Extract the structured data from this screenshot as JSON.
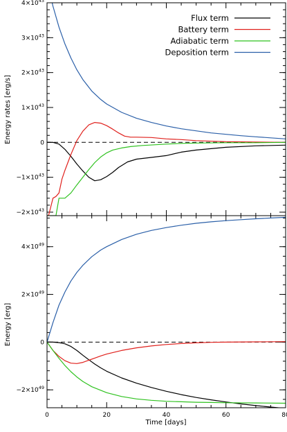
{
  "chart_data": [
    {
      "type": "line",
      "ylabel": "Energy rates [erg/s]",
      "xlabel": "",
      "xlim": [
        0,
        80
      ],
      "ylim": [
        -2.1,
        4.0
      ],
      "y_exponent": "43",
      "yticks": [
        {
          "value": -2,
          "mantissa": "−2×10",
          "exp": "43"
        },
        {
          "value": -1,
          "mantissa": "−1×10",
          "exp": "43"
        },
        {
          "value": 0,
          "mantissa": "0",
          "exp": ""
        },
        {
          "value": 1,
          "mantissa": "1×10",
          "exp": "43"
        },
        {
          "value": 2,
          "mantissa": "2×10",
          "exp": "43"
        },
        {
          "value": 3,
          "mantissa": "3×10",
          "exp": "43"
        },
        {
          "value": 4,
          "mantissa": "4×10",
          "exp": "43"
        }
      ],
      "zero_line": "dashed",
      "legend": "top-right",
      "series": [
        {
          "name": "Flux term",
          "color": "#000000",
          "x": [
            0,
            2,
            4,
            6,
            8,
            10,
            12,
            14,
            16,
            18,
            20,
            22,
            24,
            27,
            30,
            35,
            40,
            45,
            50,
            60,
            70,
            80
          ],
          "y": [
            0,
            0,
            -0.05,
            -0.2,
            -0.4,
            -0.62,
            -0.82,
            -1.0,
            -1.1,
            -1.07,
            -0.98,
            -0.86,
            -0.72,
            -0.56,
            -0.48,
            -0.43,
            -0.38,
            -0.28,
            -0.22,
            -0.14,
            -0.1,
            -0.08
          ]
        },
        {
          "name": "Battery term",
          "color": "#e0201c",
          "x": [
            0,
            0.5,
            2,
            3,
            4,
            5,
            6,
            8,
            10,
            12,
            14,
            16,
            18,
            20,
            22,
            24,
            26,
            28,
            30,
            35,
            40,
            45,
            50,
            60,
            70,
            80
          ],
          "y": [
            -2.1,
            -2.1,
            -1.6,
            -1.55,
            -1.45,
            -1.05,
            -0.8,
            -0.35,
            0.05,
            0.32,
            0.5,
            0.57,
            0.55,
            0.48,
            0.38,
            0.27,
            0.18,
            0.15,
            0.15,
            0.14,
            0.1,
            0.08,
            0.05,
            0.02,
            0.01,
            0.0
          ]
        },
        {
          "name": "Adiabatic term",
          "color": "#2fc21f",
          "x": [
            0,
            1,
            3,
            4,
            6,
            8,
            10,
            12,
            14,
            16,
            18,
            20,
            22,
            25,
            28,
            32,
            36,
            40,
            45,
            50,
            60,
            70,
            80
          ],
          "y": [
            -2.1,
            -2.1,
            -2.1,
            -1.6,
            -1.6,
            -1.45,
            -1.22,
            -1.0,
            -0.78,
            -0.58,
            -0.42,
            -0.3,
            -0.22,
            -0.16,
            -0.12,
            -0.09,
            -0.07,
            -0.05,
            -0.03,
            -0.02,
            -0.01,
            -0.01,
            0.0
          ]
        },
        {
          "name": "Deposition term",
          "color": "#2a5fa8",
          "x": [
            0,
            2,
            4,
            6,
            8,
            10,
            12,
            15,
            18,
            20,
            25,
            30,
            35,
            40,
            45,
            50,
            55,
            60,
            65,
            70,
            75,
            80
          ],
          "y": [
            4.6,
            3.9,
            3.3,
            2.82,
            2.42,
            2.08,
            1.8,
            1.47,
            1.23,
            1.1,
            0.86,
            0.69,
            0.57,
            0.47,
            0.39,
            0.33,
            0.27,
            0.23,
            0.19,
            0.16,
            0.13,
            0.1
          ]
        }
      ]
    },
    {
      "type": "line",
      "ylabel": "Energy [erg]",
      "xlabel": "Time [days]",
      "xlim": [
        0,
        80
      ],
      "ylim": [
        -2.75,
        5.3
      ],
      "y_exponent": "49",
      "xticks": [
        0,
        20,
        40,
        60,
        80
      ],
      "yticks": [
        {
          "value": -2,
          "mantissa": "−2×10",
          "exp": "49"
        },
        {
          "value": 0,
          "mantissa": "0",
          "exp": ""
        },
        {
          "value": 2,
          "mantissa": "2×10",
          "exp": "49"
        },
        {
          "value": 4,
          "mantissa": "4×10",
          "exp": "49"
        }
      ],
      "zero_line": "dashed",
      "series": [
        {
          "name": "Flux term",
          "color": "#000000",
          "x": [
            0,
            2,
            4,
            6,
            8,
            10,
            12,
            14,
            16,
            18,
            20,
            25,
            30,
            35,
            40,
            45,
            50,
            55,
            60,
            65,
            70,
            75,
            80
          ],
          "y": [
            0,
            0,
            -0.02,
            -0.07,
            -0.18,
            -0.35,
            -0.55,
            -0.74,
            -0.92,
            -1.08,
            -1.22,
            -1.5,
            -1.72,
            -1.9,
            -2.06,
            -2.2,
            -2.32,
            -2.42,
            -2.51,
            -2.59,
            -2.66,
            -2.72,
            -2.78
          ]
        },
        {
          "name": "Battery term",
          "color": "#e0201c",
          "x": [
            0,
            2,
            4,
            6,
            8,
            10,
            12,
            14,
            16,
            18,
            20,
            25,
            30,
            35,
            40,
            45,
            50,
            55,
            60,
            70,
            80
          ],
          "y": [
            0,
            -0.35,
            -0.6,
            -0.78,
            -0.88,
            -0.9,
            -0.85,
            -0.76,
            -0.67,
            -0.58,
            -0.5,
            -0.35,
            -0.24,
            -0.16,
            -0.1,
            -0.06,
            -0.03,
            -0.01,
            0.0,
            0.01,
            0.02
          ]
        },
        {
          "name": "Adiabatic term",
          "color": "#2fc21f",
          "x": [
            0,
            2,
            4,
            6,
            8,
            10,
            12,
            15,
            20,
            25,
            30,
            35,
            40,
            45,
            50,
            55,
            60,
            70,
            80
          ],
          "y": [
            0,
            -0.35,
            -0.68,
            -0.98,
            -1.24,
            -1.46,
            -1.65,
            -1.87,
            -2.12,
            -2.28,
            -2.38,
            -2.44,
            -2.48,
            -2.5,
            -2.52,
            -2.53,
            -2.54,
            -2.55,
            -2.56
          ]
        },
        {
          "name": "Deposition term",
          "color": "#2a5fa8",
          "x": [
            0,
            2,
            4,
            6,
            8,
            10,
            12,
            15,
            18,
            20,
            25,
            30,
            35,
            40,
            45,
            50,
            55,
            60,
            65,
            70,
            75,
            80
          ],
          "y": [
            0,
            0.82,
            1.55,
            2.1,
            2.56,
            2.92,
            3.22,
            3.58,
            3.86,
            4.0,
            4.3,
            4.52,
            4.68,
            4.8,
            4.9,
            4.98,
            5.04,
            5.09,
            5.13,
            5.17,
            5.2,
            5.23
          ]
        }
      ]
    }
  ]
}
